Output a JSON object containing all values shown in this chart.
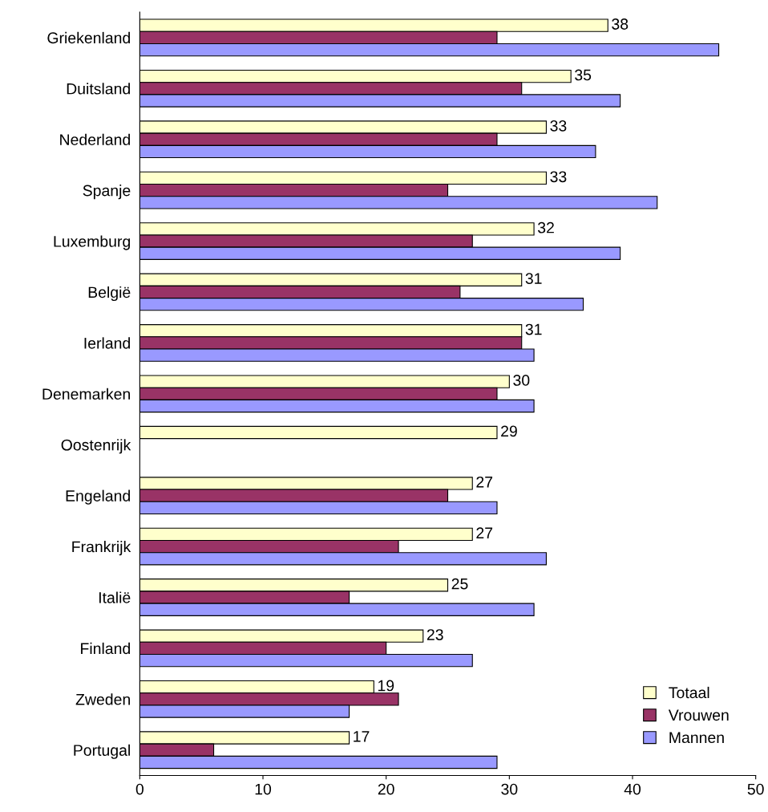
{
  "chart_data": {
    "type": "bar",
    "orientation": "horizontal",
    "categories": [
      "Griekenland",
      "Duitsland",
      "Nederland",
      "Spanje",
      "Luxemburg",
      "België",
      "Ierland",
      "Denemarken",
      "Oostenrijk",
      "Engeland",
      "Frankrijk",
      "Italië",
      "Finland",
      "Zweden",
      "Portugal"
    ],
    "series": [
      {
        "name": "Totaal",
        "color": "#ffffcc",
        "values": [
          38,
          35,
          33,
          33,
          32,
          31,
          31,
          30,
          29,
          27,
          27,
          25,
          23,
          19,
          17
        ],
        "value_labels": [
          "38",
          "35",
          "33",
          "33",
          "32",
          "31",
          "31",
          "30",
          "29",
          "27",
          "27",
          "25",
          "23",
          "19",
          "17"
        ]
      },
      {
        "name": "Vrouwen",
        "color": "#993366",
        "values": [
          29,
          31,
          29,
          25,
          27,
          26,
          31,
          29,
          null,
          25,
          21,
          17,
          20,
          21,
          6
        ]
      },
      {
        "name": "Mannen",
        "color": "#9999ff",
        "values": [
          47,
          39,
          37,
          42,
          39,
          36,
          32,
          32,
          null,
          29,
          33,
          32,
          27,
          17,
          29
        ]
      }
    ],
    "xlim": [
      0,
      50
    ],
    "xticks": [
      0,
      10,
      20,
      30,
      40,
      50
    ],
    "grid": false,
    "legend": "bottom right"
  }
}
